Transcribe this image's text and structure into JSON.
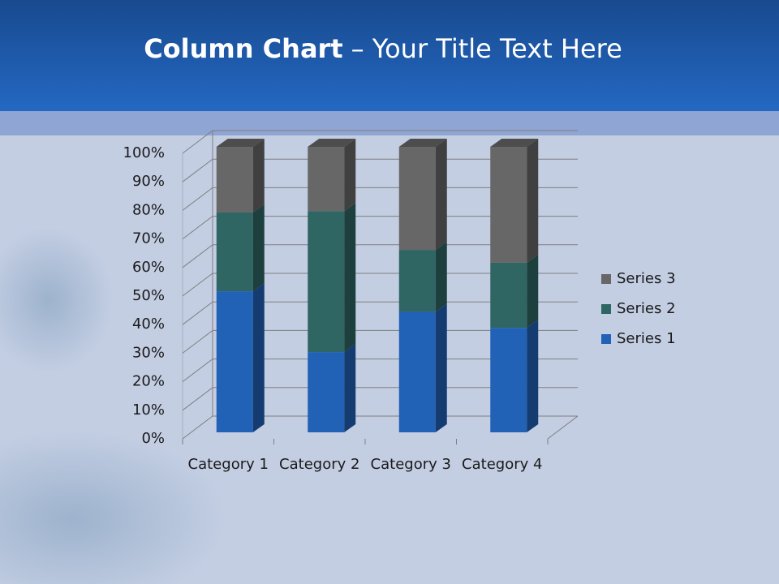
{
  "chart_data": {
    "type": "bar3d-stacked-percent",
    "title_parts": [
      "Column Chart",
      "– Your Title Text Here"
    ],
    "categories": [
      "Category 1",
      "Category 2",
      "Category 3",
      "Category 4"
    ],
    "series": [
      {
        "name": "Series 1",
        "color": "#2161b6",
        "values": [
          49.4,
          28.1,
          42.2,
          36.6
        ]
      },
      {
        "name": "Series 2",
        "color": "#2f6563",
        "values": [
          27.6,
          49.4,
          21.7,
          22.8
        ]
      },
      {
        "name": "Series 3",
        "color": "#676767",
        "values": [
          23.0,
          22.5,
          36.1,
          40.6
        ]
      }
    ],
    "ylim": [
      0,
      100
    ],
    "yticks": [
      {
        "value": 0,
        "label": "0%"
      },
      {
        "value": 10,
        "label": "10%"
      },
      {
        "value": 20,
        "label": "20%"
      },
      {
        "value": 30,
        "label": "30%"
      },
      {
        "value": 40,
        "label": "40%"
      },
      {
        "value": 50,
        "label": "50%"
      },
      {
        "value": 60,
        "label": "60%"
      },
      {
        "value": 70,
        "label": "70%"
      },
      {
        "value": 80,
        "label": "80%"
      },
      {
        "value": 90,
        "label": "90%"
      },
      {
        "value": 100,
        "label": "100%"
      }
    ],
    "grid": true,
    "legend": "right"
  }
}
